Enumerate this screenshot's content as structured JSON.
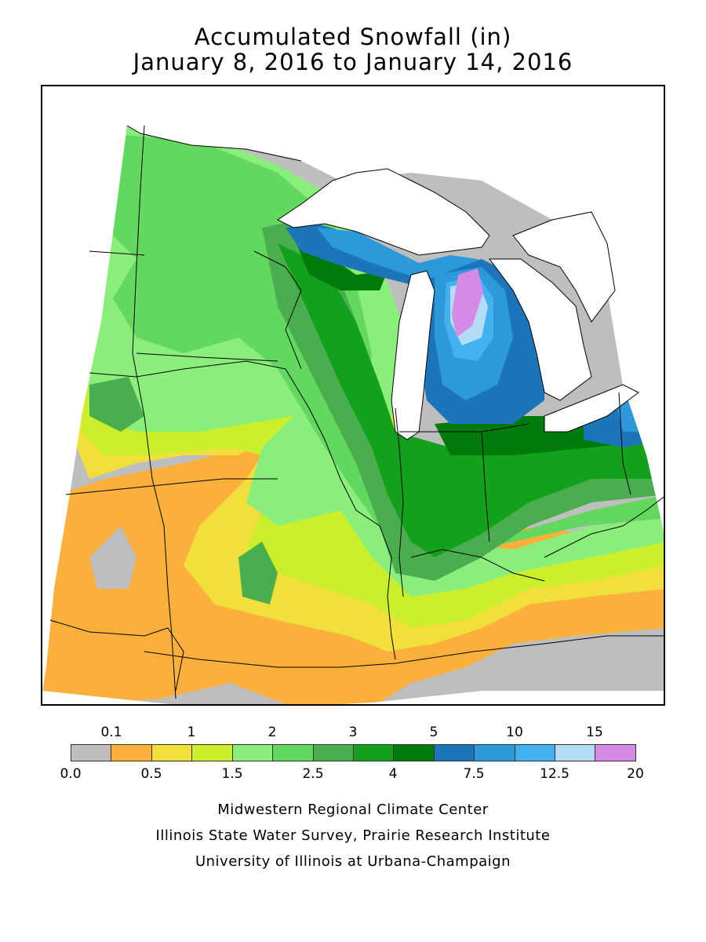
{
  "title": {
    "line1": "Accumulated Snowfall (in)",
    "line2": "January 8, 2016 to January 14, 2016"
  },
  "legend": {
    "bins": [
      {
        "color": "#bebebe"
      },
      {
        "color": "#fbb03b"
      },
      {
        "color": "#f1e03c"
      },
      {
        "color": "#cbef2a"
      },
      {
        "color": "#8aef7a"
      },
      {
        "color": "#63d85e"
      },
      {
        "color": "#4bae4e"
      },
      {
        "color": "#11a11b"
      },
      {
        "color": "#007b0c"
      },
      {
        "color": "#1c75b9"
      },
      {
        "color": "#2c99db"
      },
      {
        "color": "#45b0ee"
      },
      {
        "color": "#b5dcf7"
      },
      {
        "color": "#d58be6"
      }
    ],
    "top_labels": [
      "0.1",
      "1",
      "2",
      "3",
      "5",
      "10",
      "15"
    ],
    "bottom_labels": [
      "0.0",
      "0.5",
      "1.5",
      "2.5",
      "4",
      "7.5",
      "12.5",
      "20"
    ]
  },
  "credits": [
    "Midwestern Regional Climate Center",
    "Illinois State Water Survey, Prairie Research Institute",
    "University of Illinois at Urbana-Champaign"
  ]
}
